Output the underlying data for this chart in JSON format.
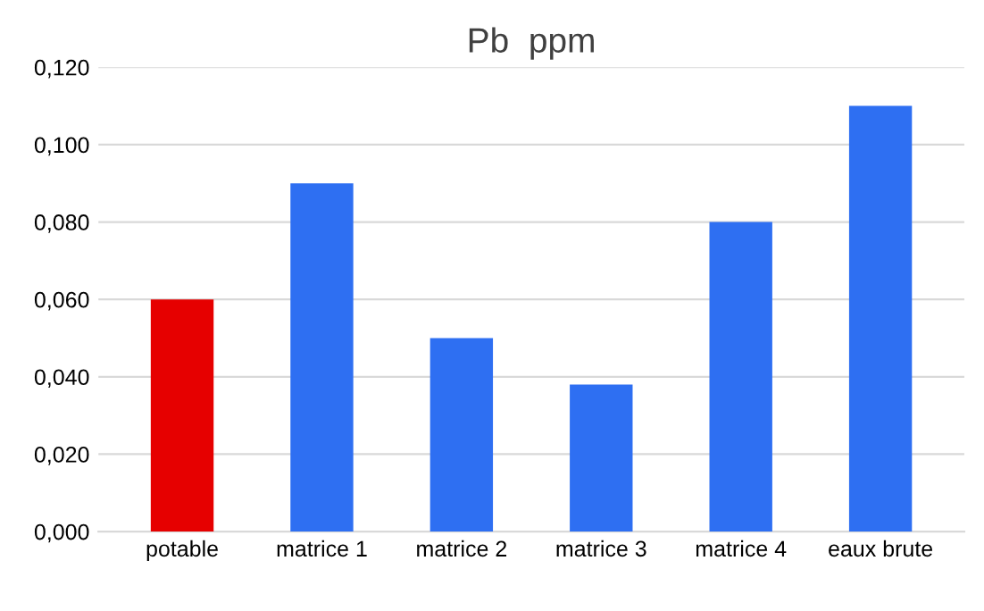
{
  "chart_data": {
    "type": "bar",
    "title": "Pb  ppm",
    "categories": [
      "potable",
      "matrice 1",
      "matrice 2",
      "matrice 3",
      "matrice 4",
      "eaux brute"
    ],
    "values": [
      0.06,
      0.09,
      0.05,
      0.038,
      0.08,
      0.11
    ],
    "colors": [
      "#e60000",
      "#2e6ff2",
      "#2e6ff2",
      "#2e6ff2",
      "#2e6ff2",
      "#2e6ff2"
    ],
    "ylim": [
      0,
      0.12
    ],
    "yticks": [
      {
        "value": 0,
        "label": "0,000"
      },
      {
        "value": 0.02,
        "label": "0,020"
      },
      {
        "value": 0.04,
        "label": "0,040"
      },
      {
        "value": 0.06,
        "label": "0,060"
      },
      {
        "value": 0.08,
        "label": "0,080"
      },
      {
        "value": 0.1,
        "label": "0,100"
      },
      {
        "value": 0.12,
        "label": "0,120"
      }
    ],
    "grid": "y"
  }
}
